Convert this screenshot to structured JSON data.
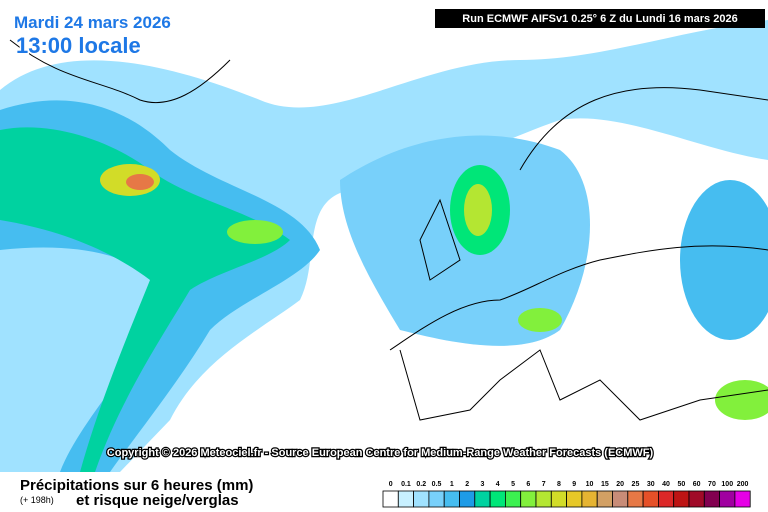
{
  "header": {
    "date": "Mardi 24 mars 2026",
    "time": "13:00 locale",
    "run": "Run ECMWF AIFSv1 0.25° 6 Z du Lundi 16 mars 2026"
  },
  "copyright": "Copyright © 2026 Meteociel.fr - Source European Centre for Medium-Range Weather Forecasts (ECMWF)",
  "footer": {
    "title": "Précipitations sur 6 heures (mm)",
    "lead": "(+ 198h)",
    "subtitle": "et risque neige/verglas"
  },
  "legend": {
    "items": [
      {
        "label": "0",
        "color": "#ffffff"
      },
      {
        "label": "0.1",
        "color": "#c8f0ff"
      },
      {
        "label": "0.2",
        "color": "#a0e2ff"
      },
      {
        "label": "0.5",
        "color": "#78d0fa"
      },
      {
        "label": "1",
        "color": "#46bdf0"
      },
      {
        "label": "2",
        "color": "#1e9be6"
      },
      {
        "label": "3",
        "color": "#00d2a0"
      },
      {
        "label": "4",
        "color": "#00e678"
      },
      {
        "label": "5",
        "color": "#3cf050"
      },
      {
        "label": "6",
        "color": "#82f03c"
      },
      {
        "label": "7",
        "color": "#b4e632"
      },
      {
        "label": "8",
        "color": "#d2dc28"
      },
      {
        "label": "9",
        "color": "#e6c828"
      },
      {
        "label": "10",
        "color": "#e6b432"
      },
      {
        "label": "15",
        "color": "#d2a064"
      },
      {
        "label": "20",
        "color": "#c88c78"
      },
      {
        "label": "25",
        "color": "#e67846"
      },
      {
        "label": "30",
        "color": "#e65028"
      },
      {
        "label": "40",
        "color": "#dc2828"
      },
      {
        "label": "50",
        "color": "#be1414"
      },
      {
        "label": "60",
        "color": "#a00a28"
      },
      {
        "label": "70",
        "color": "#820050"
      },
      {
        "label": "100",
        "color": "#a000a0"
      },
      {
        "label": "200",
        "color": "#e600e6"
      }
    ]
  }
}
